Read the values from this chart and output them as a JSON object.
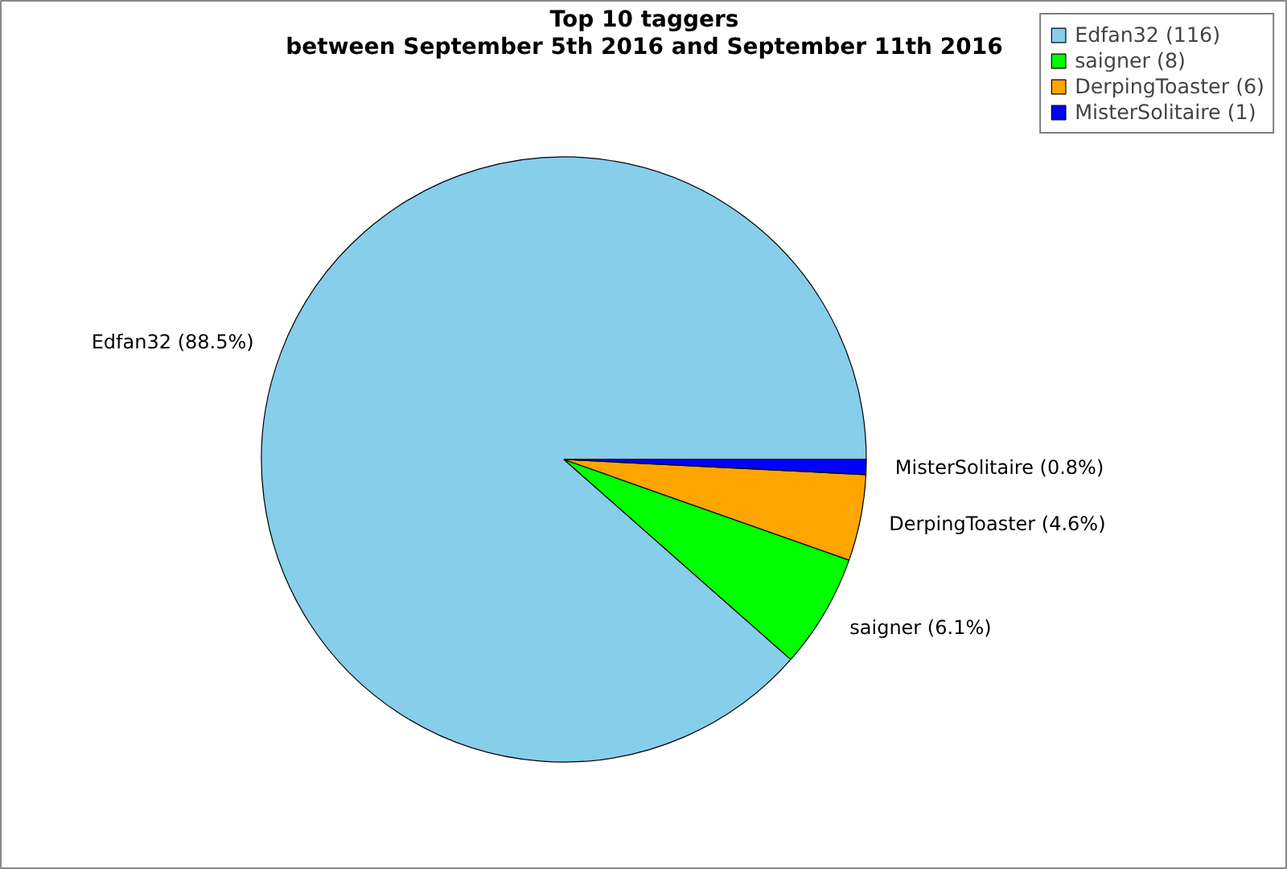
{
  "chart_data": {
    "type": "pie",
    "title": "Top 10 taggers",
    "subtitle": "between September 5th 2016 and September 11th 2016",
    "categories": [
      "Edfan32 (116)",
      "saigner (8)",
      "DerpingToaster (6)",
      "MisterSolitaire (1)"
    ],
    "values": [
      88.5,
      6.1,
      4.6,
      0.8
    ],
    "colors": [
      "#87ceeb",
      "#00ff00",
      "#ffa500",
      "#0000ff"
    ],
    "value_labels": [
      "Edfan32 (88.5%)",
      "saigner (6.1%)",
      "DerpingToaster (4.6%)",
      "MisterSolitaire (0.8%)"
    ],
    "legend": "top right"
  }
}
